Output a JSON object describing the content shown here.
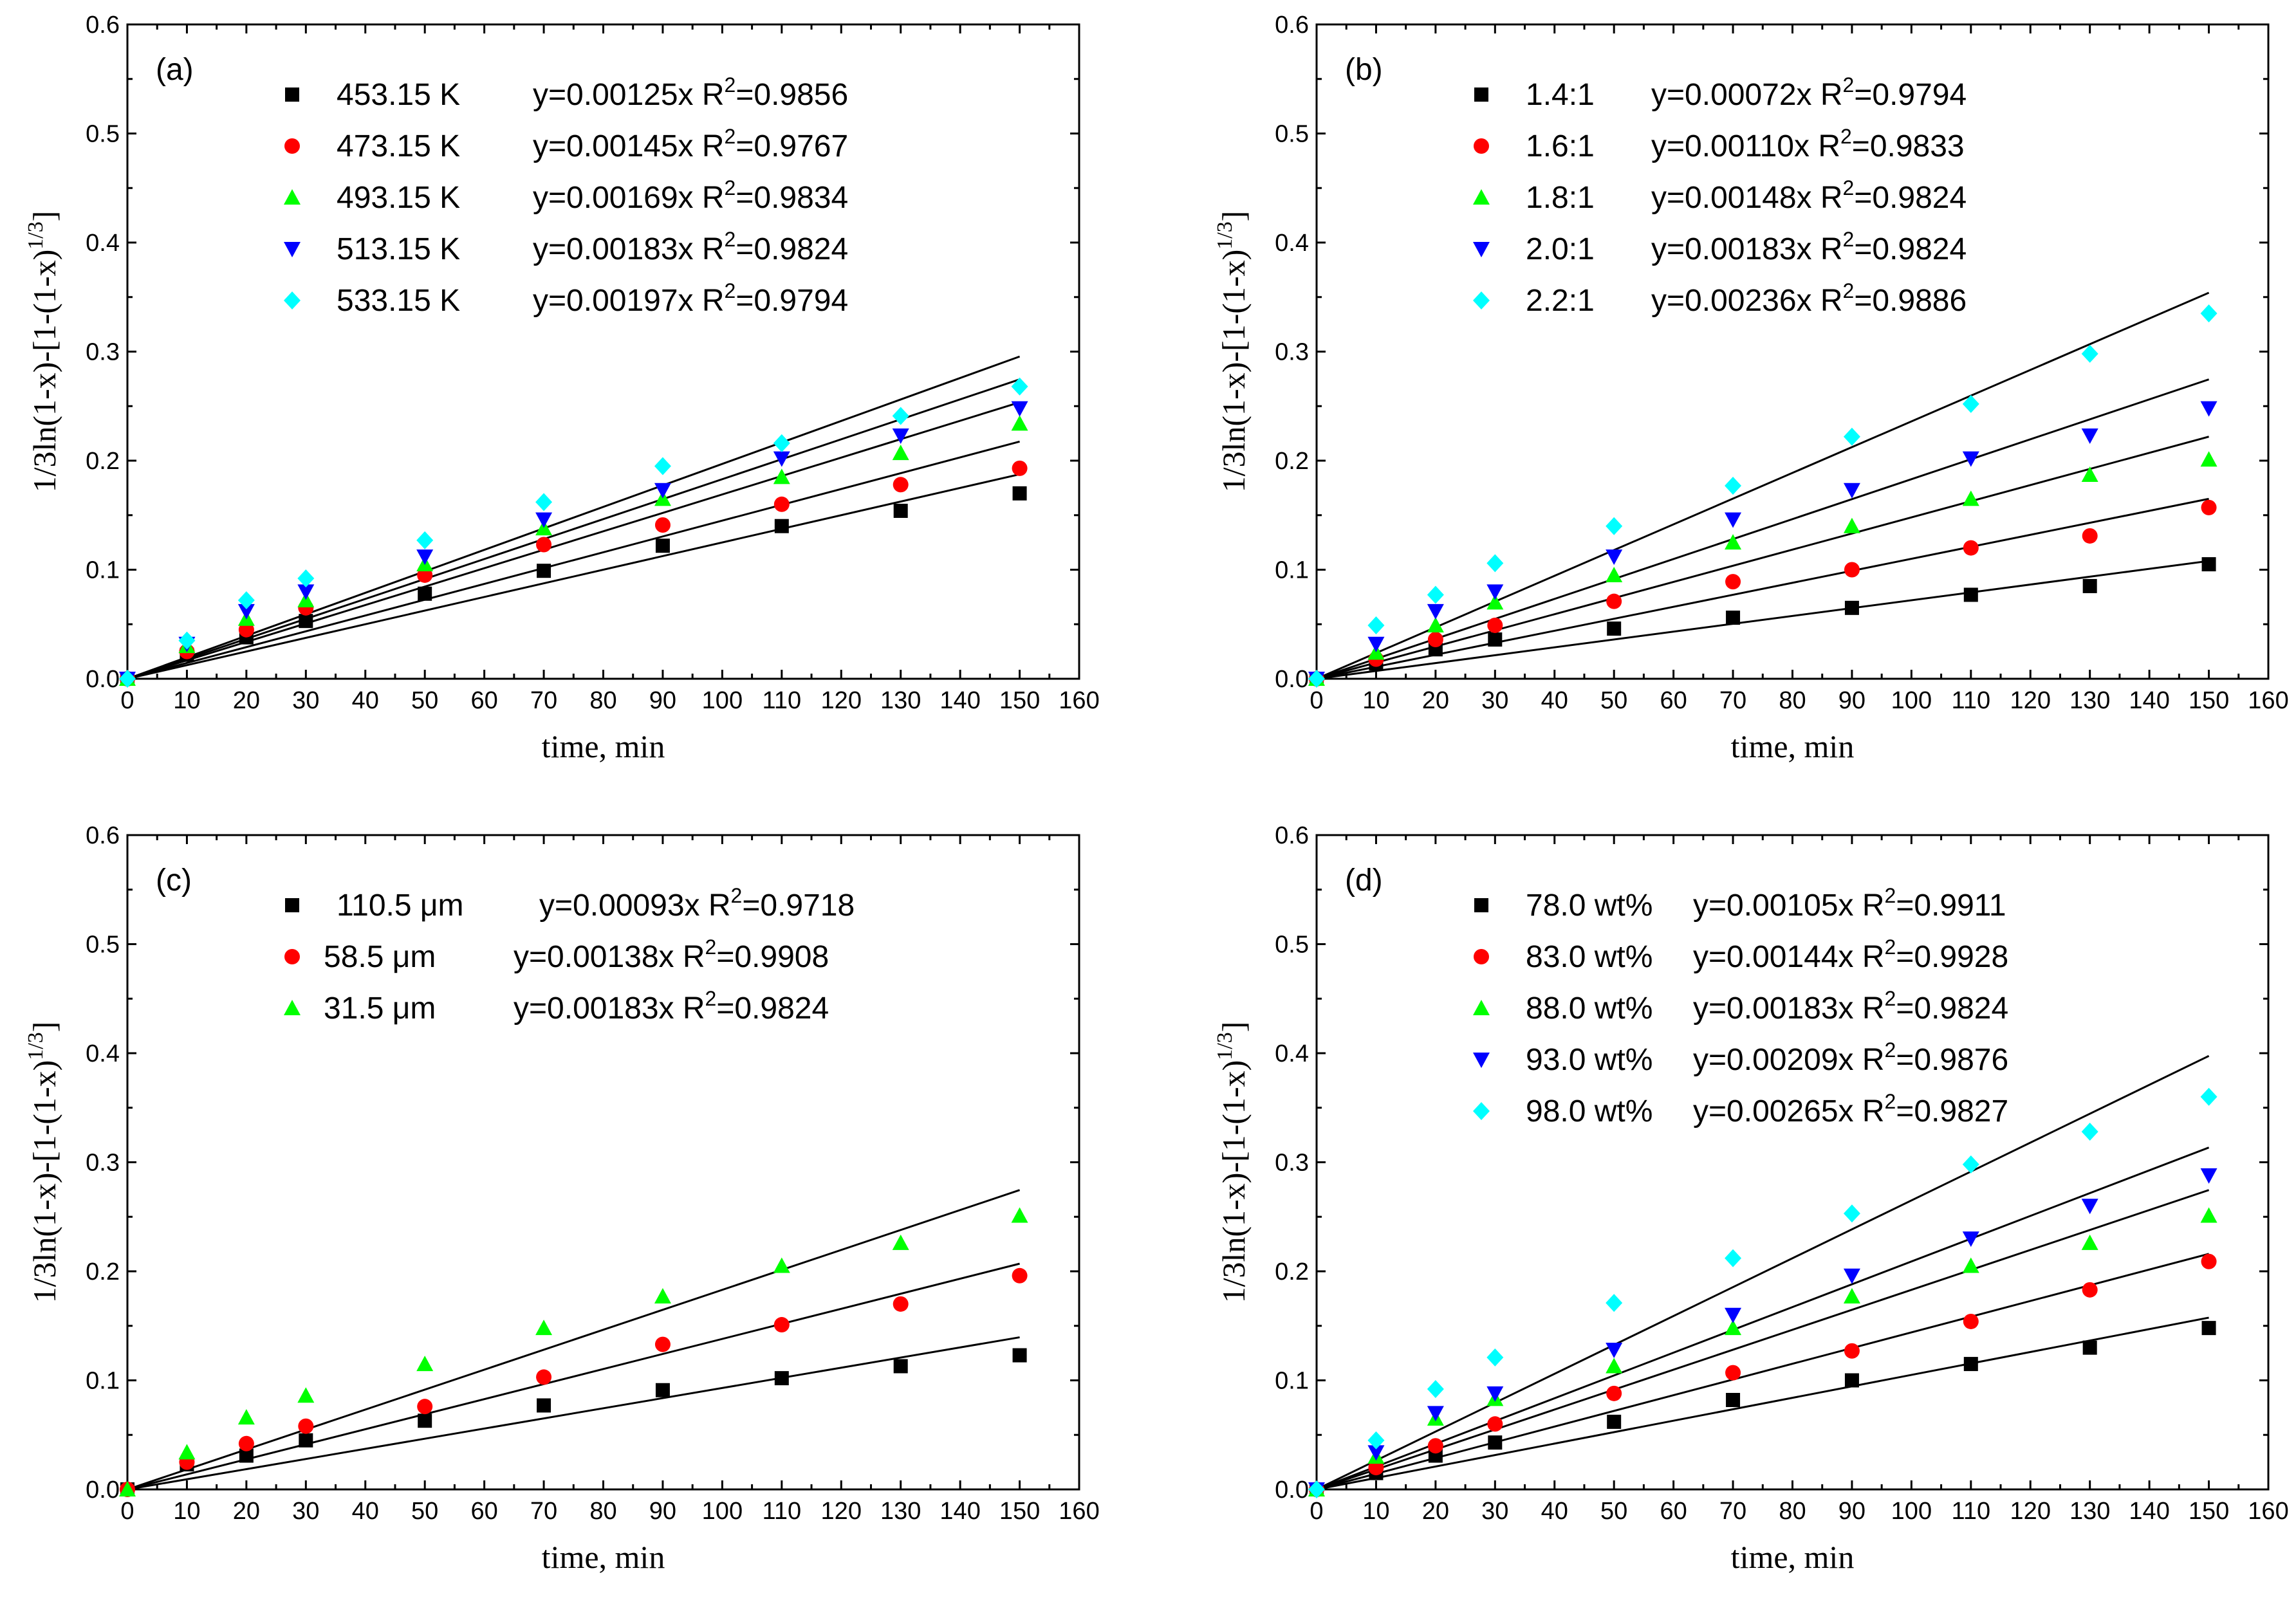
{
  "chart_data": [
    {
      "type": "scatter",
      "panel_label": "(a)",
      "xlabel": "time, min",
      "ylabel": "1/3ln(1-x)-[1-(1-x)^1/3]",
      "ylabel_main": "1/3ln(1-x)-[1-(1-x)",
      "ylabel_sup": "1/3",
      "ylabel_close": "]",
      "xlim": [
        0,
        160
      ],
      "ylim": [
        0,
        0.6
      ],
      "xticks": [
        "0",
        "10",
        "20",
        "30",
        "40",
        "50",
        "60",
        "70",
        "80",
        "90",
        "100",
        "110",
        "120",
        "130",
        "140",
        "150",
        "160"
      ],
      "yticks": [
        "0.0",
        "0.1",
        "0.2",
        "0.3",
        "0.4",
        "0.5",
        "0.6"
      ],
      "x": [
        0,
        10,
        20,
        30,
        50,
        70,
        90,
        110,
        130,
        150
      ],
      "series": [
        {
          "name": "453.15 K",
          "color": "#000000",
          "marker": "square",
          "eq": "y=0.00125x",
          "r2": "0.9856",
          "slope": 0.00125,
          "values": [
            0,
            0.022,
            0.038,
            0.053,
            0.078,
            0.099,
            0.122,
            0.14,
            0.154,
            0.17
          ]
        },
        {
          "name": "473.15 K",
          "color": "#ff0000",
          "marker": "circle",
          "eq": "y=0.00145x",
          "r2": "0.9767",
          "slope": 0.00145,
          "values": [
            0,
            0.025,
            0.045,
            0.065,
            0.095,
            0.123,
            0.141,
            0.16,
            0.178,
            0.193
          ]
        },
        {
          "name": "493.15 K",
          "color": "#00ff00",
          "marker": "triangle-up",
          "eq": "y=0.00169x",
          "r2": "0.9834",
          "slope": 0.00169,
          "values": [
            0,
            0.03,
            0.055,
            0.072,
            0.105,
            0.138,
            0.165,
            0.185,
            0.207,
            0.234
          ]
        },
        {
          "name": "513.15 K",
          "color": "#0000ff",
          "marker": "triangle-down",
          "eq": "y=0.00183x",
          "r2": "0.9824",
          "slope": 0.00183,
          "values": [
            0,
            0.032,
            0.062,
            0.08,
            0.112,
            0.146,
            0.173,
            0.202,
            0.223,
            0.248
          ]
        },
        {
          "name": "533.15 K",
          "color": "#00ffff",
          "marker": "diamond",
          "eq": "y=0.00197x",
          "r2": "0.9794",
          "slope": 0.00197,
          "values": [
            0,
            0.035,
            0.072,
            0.092,
            0.127,
            0.162,
            0.195,
            0.216,
            0.241,
            0.268
          ]
        }
      ]
    },
    {
      "type": "scatter",
      "panel_label": "(b)",
      "xlabel": "time, min",
      "ylabel": "1/3ln(1-x)-[1-(1-x)^1/3]",
      "ylabel_main": "1/3ln(1-x)-[1-(1-x)",
      "ylabel_sup": "1/3",
      "ylabel_close": "]",
      "xlim": [
        0,
        160
      ],
      "ylim": [
        0,
        0.6
      ],
      "xticks": [
        "0",
        "10",
        "20",
        "30",
        "40",
        "50",
        "60",
        "70",
        "80",
        "90",
        "100",
        "110",
        "120",
        "130",
        "140",
        "150",
        "160"
      ],
      "yticks": [
        "0.0",
        "0.1",
        "0.2",
        "0.3",
        "0.4",
        "0.5",
        "0.6"
      ],
      "x": [
        0,
        10,
        20,
        30,
        50,
        70,
        90,
        110,
        130,
        150
      ],
      "series": [
        {
          "name": "1.4:1",
          "color": "#000000",
          "marker": "square",
          "eq": "y=0.00072x",
          "r2": "0.9794",
          "slope": 0.00072,
          "values": [
            0,
            0.014,
            0.027,
            0.036,
            0.046,
            0.056,
            0.065,
            0.077,
            0.085,
            0.105
          ]
        },
        {
          "name": "1.6:1",
          "color": "#ff0000",
          "marker": "circle",
          "eq": "y=0.00110x",
          "r2": "0.9833",
          "slope": 0.0011,
          "values": [
            0,
            0.018,
            0.036,
            0.049,
            0.071,
            0.089,
            0.1,
            0.12,
            0.131,
            0.157
          ]
        },
        {
          "name": "1.8:1",
          "color": "#00ff00",
          "marker": "triangle-up",
          "eq": "y=0.00148x",
          "r2": "0.9824",
          "slope": 0.00148,
          "values": [
            0,
            0.024,
            0.049,
            0.07,
            0.095,
            0.125,
            0.14,
            0.165,
            0.187,
            0.201
          ]
        },
        {
          "name": "2.0:1",
          "color": "#0000ff",
          "marker": "triangle-down",
          "eq": "y=0.00183x",
          "r2": "0.9824",
          "slope": 0.00183,
          "values": [
            0,
            0.032,
            0.062,
            0.08,
            0.112,
            0.146,
            0.173,
            0.202,
            0.223,
            0.248
          ]
        },
        {
          "name": "2.2:1",
          "color": "#00ffff",
          "marker": "diamond",
          "eq": "y=0.00236x",
          "r2": "0.9886",
          "slope": 0.00236,
          "values": [
            0,
            0.049,
            0.077,
            0.106,
            0.14,
            0.177,
            0.222,
            0.252,
            0.298,
            0.335
          ]
        }
      ]
    },
    {
      "type": "scatter",
      "panel_label": "(c)",
      "xlabel": "time, min",
      "ylabel": "1/3ln(1-x)-[1-(1-x)^1/3]",
      "ylabel_main": "1/3ln(1-x)-[1-(1-x)",
      "ylabel_sup": "1/3",
      "ylabel_close": "]",
      "xlim": [
        0,
        160
      ],
      "ylim": [
        0,
        0.6
      ],
      "xticks": [
        "0",
        "10",
        "20",
        "30",
        "40",
        "50",
        "60",
        "70",
        "80",
        "90",
        "100",
        "110",
        "120",
        "130",
        "140",
        "150",
        "160"
      ],
      "yticks": [
        "0.0",
        "0.1",
        "0.2",
        "0.3",
        "0.4",
        "0.5",
        "0.6"
      ],
      "x": [
        0,
        10,
        20,
        30,
        50,
        70,
        90,
        110,
        130,
        150
      ],
      "series": [
        {
          "name": "110.5 μm",
          "color": "#000000",
          "marker": "square",
          "eq": "y=0.00093x",
          "r2": "0.9718",
          "slope": 0.00093,
          "values": [
            0,
            0.023,
            0.031,
            0.045,
            0.063,
            0.077,
            0.091,
            0.102,
            0.113,
            0.123
          ]
        },
        {
          "name": "58.5 μm",
          "color": "#ff0000",
          "marker": "circle",
          "eq": "y=0.00138x",
          "r2": "0.9908",
          "slope": 0.00138,
          "values": [
            0,
            0.025,
            0.042,
            0.058,
            0.076,
            0.103,
            0.133,
            0.151,
            0.17,
            0.196
          ]
        },
        {
          "name": "31.5 μm",
          "color": "#00ff00",
          "marker": "triangle-up",
          "eq": "y=0.00183x",
          "r2": "0.9824",
          "slope": 0.00183,
          "values": [
            0,
            0.034,
            0.066,
            0.086,
            0.115,
            0.148,
            0.177,
            0.205,
            0.226,
            0.251
          ]
        }
      ]
    },
    {
      "type": "scatter",
      "panel_label": "(d)",
      "xlabel": "time, min",
      "ylabel": "1/3ln(1-x)-[1-(1-x)^1/3]",
      "ylabel_main": "1/3ln(1-x)-[1-(1-x)",
      "ylabel_sup": "1/3",
      "ylabel_close": "]",
      "xlim": [
        0,
        160
      ],
      "ylim": [
        0,
        0.6
      ],
      "xticks": [
        "0",
        "10",
        "20",
        "30",
        "40",
        "50",
        "60",
        "70",
        "80",
        "90",
        "100",
        "110",
        "120",
        "130",
        "140",
        "150",
        "160"
      ],
      "yticks": [
        "0.0",
        "0.1",
        "0.2",
        "0.3",
        "0.4",
        "0.5",
        "0.6"
      ],
      "x": [
        0,
        10,
        20,
        30,
        50,
        70,
        90,
        110,
        130,
        150
      ],
      "series": [
        {
          "name": "78.0 wt%",
          "color": "#000000",
          "marker": "square",
          "eq": "y=0.00105x",
          "r2": "0.9911",
          "slope": 0.00105,
          "values": [
            0,
            0.015,
            0.031,
            0.043,
            0.062,
            0.082,
            0.1,
            0.115,
            0.13,
            0.148
          ]
        },
        {
          "name": "83.0 wt%",
          "color": "#ff0000",
          "marker": "circle",
          "eq": "y=0.00144x",
          "r2": "0.9928",
          "slope": 0.00144,
          "values": [
            0,
            0.02,
            0.04,
            0.06,
            0.088,
            0.107,
            0.127,
            0.154,
            0.183,
            0.209
          ]
        },
        {
          "name": "88.0 wt%",
          "color": "#00ff00",
          "marker": "triangle-up",
          "eq": "y=0.00183x",
          "r2": "0.9824",
          "slope": 0.00183,
          "values": [
            0,
            0.03,
            0.065,
            0.083,
            0.113,
            0.148,
            0.177,
            0.205,
            0.226,
            0.251
          ]
        },
        {
          "name": "93.0 wt%",
          "color": "#0000ff",
          "marker": "triangle-down",
          "eq": "y=0.00209x",
          "r2": "0.9876",
          "slope": 0.00209,
          "values": [
            0,
            0.034,
            0.07,
            0.088,
            0.128,
            0.16,
            0.196,
            0.23,
            0.26,
            0.288
          ]
        },
        {
          "name": "98.0 wt%",
          "color": "#00ffff",
          "marker": "diamond",
          "eq": "y=0.00265x",
          "r2": "0.9827",
          "slope": 0.00265,
          "values": [
            0,
            0.045,
            0.092,
            0.121,
            0.171,
            0.212,
            0.253,
            0.298,
            0.328,
            0.36
          ]
        }
      ]
    }
  ]
}
